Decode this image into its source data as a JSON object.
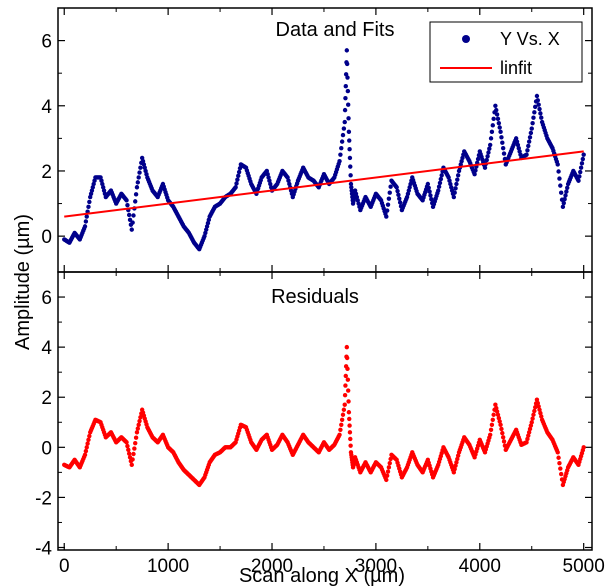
{
  "chart_data": {
    "type": "scatter",
    "xlabel": "Scan along X (µm)",
    "ylabel": "Amplitude (µm)",
    "xlim": [
      -60,
      5080
    ],
    "xticks": [
      "0",
      "1000",
      "2000",
      "3000",
      "4000",
      "5000"
    ],
    "xtick_values": [
      0,
      1000,
      2000,
      3000,
      4000,
      5000
    ],
    "grid": false,
    "panels": [
      {
        "title": "Data and Fits",
        "ylim": [
          -1.1,
          7.0
        ],
        "yticks": [
          "0",
          "2",
          "4",
          "6"
        ],
        "ytick_values": [
          0,
          2,
          4,
          6
        ],
        "legend": {
          "position": "top-right",
          "entries": [
            "Y Vs. X",
            "linfit"
          ]
        },
        "series": [
          {
            "name": "Y Vs. X",
            "kind": "points",
            "color": "#00008B",
            "x": [
              0,
              50,
              100,
              150,
              200,
              250,
              300,
              350,
              400,
              450,
              500,
              550,
              600,
              650,
              700,
              750,
              800,
              850,
              900,
              950,
              1000,
              1050,
              1100,
              1150,
              1200,
              1250,
              1300,
              1350,
              1400,
              1450,
              1500,
              1550,
              1600,
              1650,
              1700,
              1750,
              1800,
              1850,
              1900,
              1950,
              2000,
              2050,
              2100,
              2150,
              2200,
              2250,
              2300,
              2350,
              2400,
              2450,
              2500,
              2550,
              2600,
              2650,
              2700,
              2720,
              2740,
              2760,
              2780,
              2800,
              2850,
              2900,
              2950,
              3000,
              3050,
              3100,
              3150,
              3200,
              3250,
              3300,
              3350,
              3400,
              3450,
              3500,
              3550,
              3600,
              3650,
              3700,
              3750,
              3800,
              3850,
              3900,
              3950,
              4000,
              4050,
              4100,
              4150,
              4200,
              4250,
              4300,
              4350,
              4400,
              4450,
              4500,
              4550,
              4600,
              4650,
              4700,
              4750,
              4800,
              4850,
              4900,
              4950,
              5000
            ],
            "y": [
              -0.1,
              -0.2,
              0.1,
              -0.1,
              0.3,
              1.2,
              1.8,
              1.8,
              1.2,
              1.4,
              1.0,
              1.3,
              1.1,
              0.2,
              1.5,
              2.4,
              1.8,
              1.4,
              1.2,
              1.6,
              1.1,
              0.9,
              0.6,
              0.3,
              0.1,
              -0.2,
              -0.4,
              0.0,
              0.6,
              0.9,
              1.0,
              1.2,
              1.3,
              1.5,
              2.2,
              2.1,
              1.6,
              1.3,
              1.8,
              2.0,
              1.4,
              1.6,
              2.0,
              1.8,
              1.2,
              1.7,
              2.1,
              1.8,
              1.7,
              1.5,
              1.9,
              1.6,
              1.8,
              2.3,
              3.5,
              5.7,
              3.2,
              1.6,
              1.0,
              1.4,
              0.8,
              1.2,
              0.9,
              1.3,
              1.1,
              0.6,
              1.7,
              1.5,
              0.8,
              1.2,
              1.8,
              1.3,
              1.1,
              1.6,
              0.9,
              1.4,
              2.1,
              1.8,
              1.2,
              2.0,
              2.6,
              2.3,
              1.9,
              2.6,
              2.1,
              2.8,
              4.0,
              3.2,
              2.2,
              2.6,
              3.0,
              2.4,
              2.5,
              3.3,
              4.3,
              3.5,
              3.0,
              2.7,
              2.2,
              0.9,
              1.6,
              2.0,
              1.7,
              2.5
            ],
            "_note": "Read approximately from the plotted points at 50 µm spacing."
          },
          {
            "name": "linfit",
            "kind": "line",
            "color": "#FF0000",
            "x": [
              0,
              5000
            ],
            "y": [
              0.6,
              2.6
            ]
          }
        ]
      },
      {
        "title": "Residuals",
        "ylim": [
          -4.1,
          7.0
        ],
        "yticks": [
          "-4",
          "-2",
          "0",
          "2",
          "4",
          "6"
        ],
        "ytick_values": [
          -4,
          -2,
          0,
          2,
          4,
          6
        ],
        "series": [
          {
            "name": "Residuals",
            "kind": "points",
            "color": "#FF0000",
            "x": [
              0,
              50,
              100,
              150,
              200,
              250,
              300,
              350,
              400,
              450,
              500,
              550,
              600,
              650,
              700,
              750,
              800,
              850,
              900,
              950,
              1000,
              1050,
              1100,
              1150,
              1200,
              1250,
              1300,
              1350,
              1400,
              1450,
              1500,
              1550,
              1600,
              1650,
              1700,
              1750,
              1800,
              1850,
              1900,
              1950,
              2000,
              2050,
              2100,
              2150,
              2200,
              2250,
              2300,
              2350,
              2400,
              2450,
              2500,
              2550,
              2600,
              2650,
              2700,
              2720,
              2740,
              2760,
              2780,
              2800,
              2850,
              2900,
              2950,
              3000,
              3050,
              3100,
              3150,
              3200,
              3250,
              3300,
              3350,
              3400,
              3450,
              3500,
              3550,
              3600,
              3650,
              3700,
              3750,
              3800,
              3850,
              3900,
              3950,
              4000,
              4050,
              4100,
              4150,
              4200,
              4250,
              4300,
              4350,
              4400,
              4450,
              4500,
              4550,
              4600,
              4650,
              4700,
              4750,
              4800,
              4850,
              4900,
              4950,
              5000
            ],
            "y": [
              -0.7,
              -0.8,
              -0.5,
              -0.8,
              -0.3,
              0.6,
              1.1,
              1.0,
              0.4,
              0.6,
              0.2,
              0.4,
              0.2,
              -0.7,
              0.6,
              1.5,
              0.8,
              0.4,
              0.2,
              0.5,
              0.0,
              -0.2,
              -0.6,
              -0.9,
              -1.1,
              -1.3,
              -1.5,
              -1.2,
              -0.6,
              -0.3,
              -0.2,
              0.0,
              0.0,
              0.2,
              0.9,
              0.8,
              0.2,
              -0.1,
              0.3,
              0.5,
              -0.1,
              0.1,
              0.5,
              0.2,
              -0.3,
              0.1,
              0.5,
              0.2,
              0.0,
              -0.2,
              0.2,
              -0.1,
              0.1,
              0.5,
              1.7,
              4.0,
              1.4,
              -0.2,
              -0.8,
              -0.4,
              -1.0,
              -0.6,
              -1.0,
              -0.6,
              -0.8,
              -1.3,
              -0.3,
              -0.5,
              -1.2,
              -0.8,
              -0.2,
              -0.7,
              -1.0,
              -0.5,
              -1.2,
              -0.7,
              0.0,
              -0.4,
              -1.0,
              -0.2,
              0.4,
              0.1,
              -0.4,
              0.3,
              -0.2,
              0.5,
              1.7,
              0.9,
              -0.1,
              0.3,
              0.7,
              0.1,
              0.2,
              1.0,
              1.9,
              1.1,
              0.6,
              0.3,
              -0.2,
              -1.5,
              -0.8,
              -0.4,
              -0.7,
              0.0
            ]
          }
        ]
      }
    ]
  }
}
